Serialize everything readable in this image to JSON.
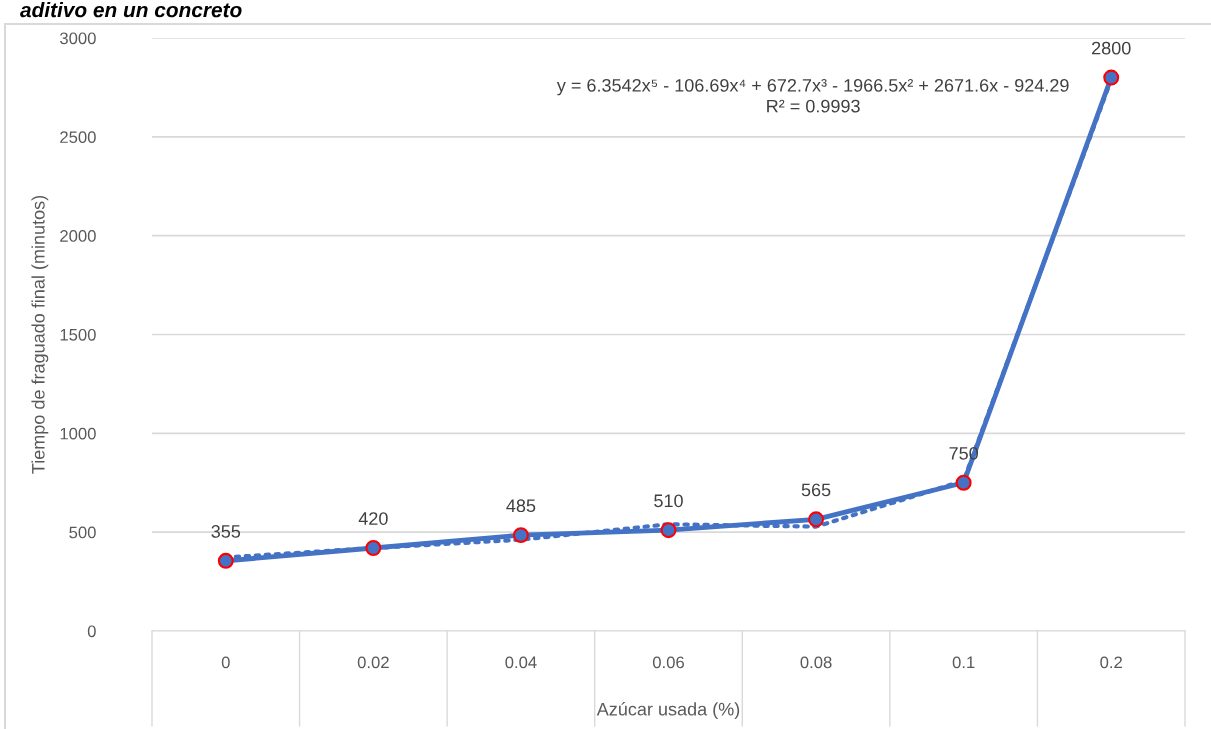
{
  "chart_data": {
    "type": "line",
    "title": "aditivo en un concreto",
    "xlabel": "Azúcar usada (%)",
    "ylabel": "Tiempo de fraguado final (minutos)",
    "categories": [
      "0",
      "0.02",
      "0.04",
      "0.06",
      "0.08",
      "0.1",
      "0.2"
    ],
    "series": [
      {
        "color": "#4472c4",
        "values": [
          355,
          420,
          485,
          510,
          565,
          750,
          2800
        ],
        "value_labels": [
          "355",
          "420",
          "485",
          "510",
          "565",
          "750",
          "2800"
        ],
        "marker": "circle",
        "line_style": "solid"
      },
      {
        "type": "line",
        "color": "#4472c4",
        "marker": "none",
        "line_style": "dotted",
        "values": [
          372,
          420,
          462,
          540,
          528,
          760,
          2790
        ]
      }
    ],
    "ylim": [
      0,
      3000
    ],
    "yticks": [
      0,
      500,
      1000,
      1500,
      2000,
      2500,
      3000
    ],
    "grid": "y",
    "legend": false,
    "annotations": [
      "y = 6.3542x⁵ - 106.69x⁴ + 672.7x³ - 1966.5x² + 2671.6x - 924.29\nR² = 0.9993"
    ]
  }
}
